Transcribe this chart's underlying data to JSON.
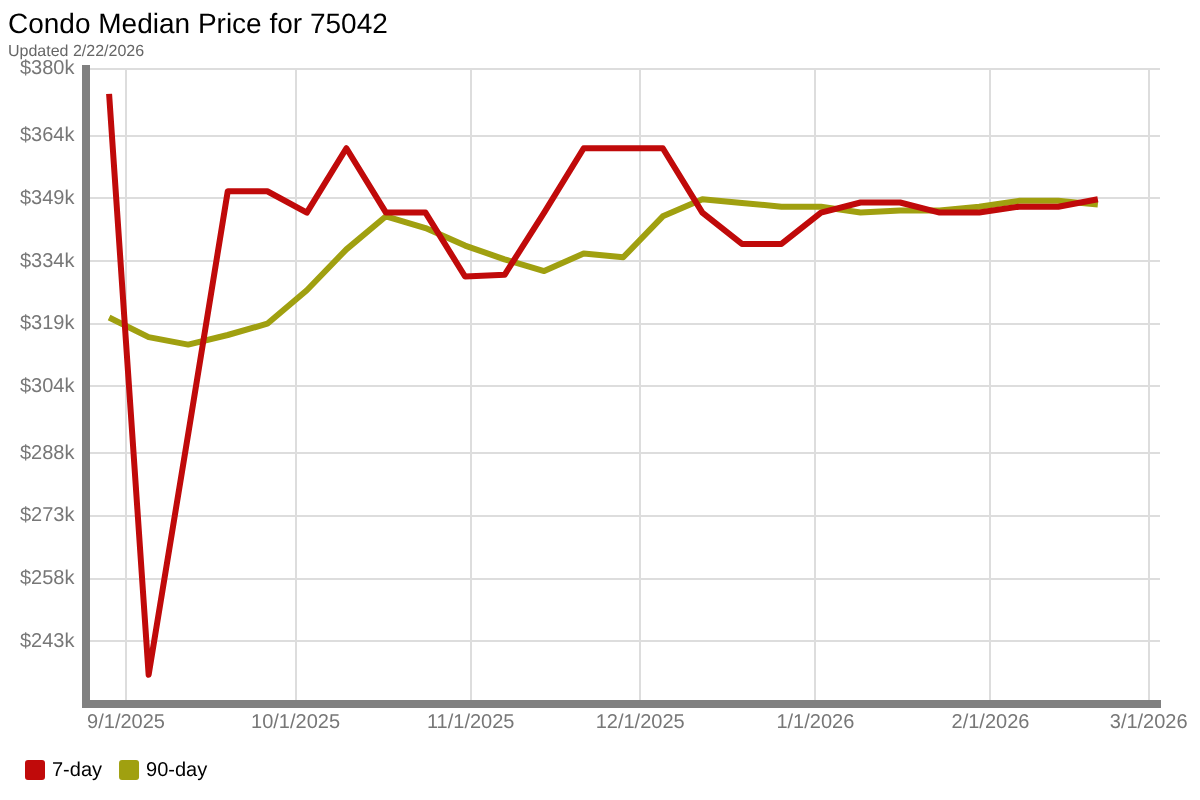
{
  "chart_data": {
    "type": "line",
    "title": "Condo Median Price for 75042",
    "subtitle": "Updated 2/22/2026",
    "x": [
      "2025-08-29",
      "2025-09-05",
      "2025-09-12",
      "2025-09-19",
      "2025-09-26",
      "2025-10-03",
      "2025-10-10",
      "2025-10-17",
      "2025-10-24",
      "2025-10-31",
      "2025-11-07",
      "2025-11-14",
      "2025-11-21",
      "2025-11-28",
      "2025-12-05",
      "2025-12-12",
      "2025-12-19",
      "2025-12-26",
      "2026-01-02",
      "2026-01-09",
      "2026-01-16",
      "2026-01-23",
      "2026-01-30",
      "2026-02-06",
      "2026-02-13",
      "2026-02-20"
    ],
    "series": [
      {
        "name": "7-day",
        "color": "#c00a0a",
        "values": [
          374000,
          235000,
          292600,
          350700,
          350700,
          345600,
          361000,
          345600,
          345600,
          330300,
          330700,
          345600,
          361000,
          361000,
          361000,
          345600,
          338100,
          338100,
          345600,
          348000,
          348000,
          345600,
          345600,
          347000,
          347000,
          348800
        ]
      },
      {
        "name": "90-day",
        "color": "#a0a010",
        "values": [
          320500,
          315800,
          314000,
          316300,
          319000,
          327000,
          336800,
          344700,
          341900,
          337700,
          334400,
          331600,
          335800,
          334900,
          344700,
          348800,
          347900,
          347000,
          347000,
          345600,
          346100,
          346100,
          347000,
          348400,
          348400,
          347500
        ]
      }
    ],
    "xlim": [
      "2025-08-25",
      "2026-03-03"
    ],
    "xticks": [
      {
        "value": "2025-09-01",
        "label": "9/1/2025"
      },
      {
        "value": "2025-10-01",
        "label": "10/1/2025"
      },
      {
        "value": "2025-11-01",
        "label": "11/1/2025"
      },
      {
        "value": "2025-12-01",
        "label": "12/1/2025"
      },
      {
        "value": "2026-01-01",
        "label": "1/1/2026"
      },
      {
        "value": "2026-02-01",
        "label": "2/1/2026"
      },
      {
        "value": "2026-03-01",
        "label": "3/1/2026"
      }
    ],
    "ylim": [
      228000,
      380000
    ],
    "yticks": [
      {
        "value": 380000,
        "label": "$380k"
      },
      {
        "value": 364000,
        "label": "$364k"
      },
      {
        "value": 349000,
        "label": "$349k"
      },
      {
        "value": 334000,
        "label": "$334k"
      },
      {
        "value": 319000,
        "label": "$319k"
      },
      {
        "value": 304000,
        "label": "$304k"
      },
      {
        "value": 288000,
        "label": "$288k"
      },
      {
        "value": 273000,
        "label": "$273k"
      },
      {
        "value": 258000,
        "label": "$258k"
      },
      {
        "value": 243000,
        "label": "$243k"
      }
    ],
    "grid": true,
    "legend": "bottom left",
    "marker": "none",
    "line_style": "solid"
  }
}
